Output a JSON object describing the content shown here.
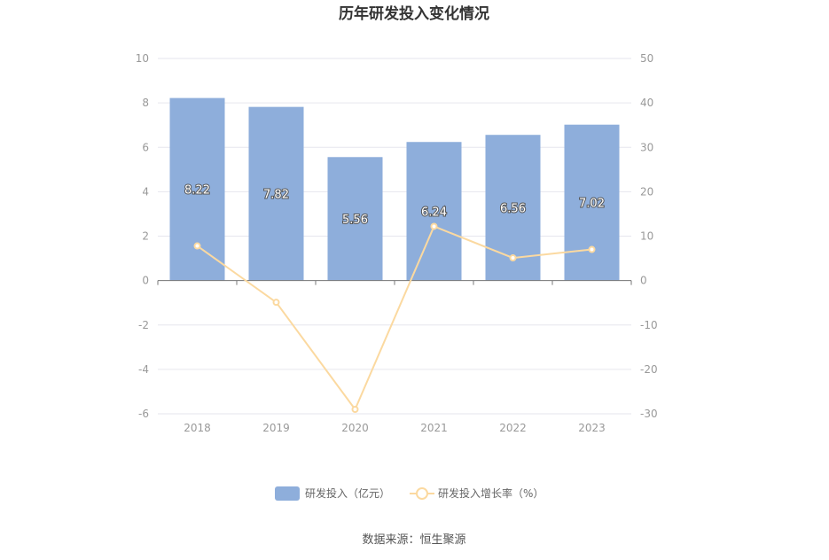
{
  "chart_data": {
    "type": "bar",
    "title": "历年研发投入变化情况",
    "categories": [
      "2018",
      "2019",
      "2020",
      "2021",
      "2022",
      "2023"
    ],
    "series": [
      {
        "name": "研发投入（亿元）",
        "type": "bar",
        "axis": "left",
        "color": "#8eaedb",
        "values": [
          8.22,
          7.82,
          5.56,
          6.24,
          6.56,
          7.02
        ],
        "labels": [
          "8.22",
          "7.82",
          "5.56",
          "6.24",
          "6.56",
          "7.02"
        ]
      },
      {
        "name": "研发投入增长率（%）",
        "type": "line",
        "axis": "right",
        "color": "#fbd9a0",
        "values": [
          7.8,
          -4.9,
          -29.0,
          12.2,
          5.1,
          7.0
        ]
      }
    ],
    "y_left": {
      "min": -6,
      "max": 10,
      "ticks": [
        "10",
        "8",
        "6",
        "4",
        "2",
        "0",
        "-2",
        "-4",
        "-6"
      ]
    },
    "y_right": {
      "min": -30,
      "max": 50,
      "ticks": [
        "50",
        "40",
        "30",
        "20",
        "10",
        "0",
        "-10",
        "-20",
        "-30"
      ]
    },
    "grid": true,
    "legend_position": "bottom"
  },
  "source_text": "数据来源：恒生聚源"
}
